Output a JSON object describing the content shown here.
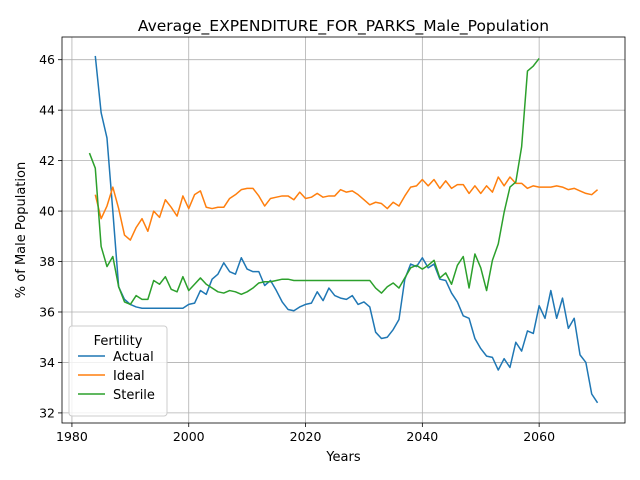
{
  "chart_data": {
    "type": "line",
    "title": "Average_EXPENDITURE_FOR_PARKS_Male_Population",
    "xlabel": "Years",
    "ylabel": "% of Male Population",
    "xlim": [
      1978.3,
      2074.7
    ],
    "ylim": [
      31.6,
      46.9
    ],
    "xticks": [
      1980,
      2000,
      2020,
      2040,
      2060
    ],
    "yticks": [
      32,
      34,
      36,
      38,
      40,
      42,
      44,
      46
    ],
    "grid": true,
    "legend": {
      "title": "Fertility",
      "position": "lower-left"
    },
    "series": [
      {
        "name": "Actual",
        "color": "#1f77b4",
        "x": [
          1984,
          1985,
          1986,
          1987,
          1988,
          1989,
          1990,
          1991,
          1992,
          1993,
          1994,
          1995,
          1996,
          1997,
          1998,
          1999,
          2000,
          2001,
          2002,
          2003,
          2004,
          2005,
          2006,
          2007,
          2008,
          2009,
          2010,
          2011,
          2012,
          2013,
          2014,
          2015,
          2016,
          2017,
          2018,
          2019,
          2020,
          2021,
          2022,
          2023,
          2024,
          2025,
          2026,
          2027,
          2028,
          2029,
          2030,
          2031,
          2032,
          2033,
          2034,
          2035,
          2036,
          2037,
          2038,
          2039,
          2040,
          2041,
          2042,
          2043,
          2044,
          2045,
          2046,
          2047,
          2048,
          2049,
          2050,
          2051,
          2052,
          2053,
          2054,
          2055,
          2056,
          2057,
          2058,
          2059,
          2060,
          2061,
          2062,
          2063,
          2064,
          2065,
          2066,
          2067,
          2068,
          2069,
          2070
        ],
        "values": [
          46.15,
          43.9,
          42.9,
          40.0,
          37.0,
          36.5,
          36.3,
          36.2,
          36.15,
          36.15,
          36.15,
          36.15,
          36.15,
          36.15,
          36.15,
          36.15,
          36.3,
          36.35,
          36.85,
          36.7,
          37.3,
          37.5,
          37.95,
          37.6,
          37.5,
          38.15,
          37.7,
          37.6,
          37.6,
          37.05,
          37.25,
          36.85,
          36.4,
          36.1,
          36.05,
          36.2,
          36.3,
          36.35,
          36.8,
          36.45,
          36.95,
          36.65,
          36.55,
          36.5,
          36.65,
          36.3,
          36.4,
          36.2,
          35.2,
          34.95,
          35.0,
          35.3,
          35.7,
          37.3,
          37.9,
          37.8,
          38.15,
          37.75,
          37.9,
          37.3,
          37.25,
          36.75,
          36.4,
          35.85,
          35.75,
          34.95,
          34.55,
          34.25,
          34.2,
          33.7,
          34.15,
          33.8,
          34.8,
          34.45,
          35.25,
          35.15,
          36.25,
          35.75,
          36.85,
          35.75,
          36.55,
          35.35,
          35.75,
          34.3,
          34.0,
          32.75,
          32.4
        ]
      },
      {
        "name": "Ideal",
        "color": "#ff7f0e",
        "x": [
          1984,
          1985,
          1986,
          1987,
          1988,
          1989,
          1990,
          1991,
          1992,
          1993,
          1994,
          1995,
          1996,
          1997,
          1998,
          1999,
          2000,
          2001,
          2002,
          2003,
          2004,
          2005,
          2006,
          2007,
          2008,
          2009,
          2010,
          2011,
          2012,
          2013,
          2014,
          2015,
          2016,
          2017,
          2018,
          2019,
          2020,
          2021,
          2022,
          2023,
          2024,
          2025,
          2026,
          2027,
          2028,
          2029,
          2030,
          2031,
          2032,
          2033,
          2034,
          2035,
          2036,
          2037,
          2038,
          2039,
          2040,
          2041,
          2042,
          2043,
          2044,
          2045,
          2046,
          2047,
          2048,
          2049,
          2050,
          2051,
          2052,
          2053,
          2054,
          2055,
          2056,
          2057,
          2058,
          2059,
          2060,
          2061,
          2062,
          2063,
          2064,
          2065,
          2066,
          2067,
          2068,
          2069,
          2070
        ],
        "values": [
          40.65,
          39.7,
          40.2,
          40.95,
          40.1,
          39.05,
          38.85,
          39.35,
          39.7,
          39.2,
          40.0,
          39.75,
          40.45,
          40.15,
          39.8,
          40.6,
          40.1,
          40.65,
          40.8,
          40.15,
          40.1,
          40.15,
          40.15,
          40.5,
          40.65,
          40.85,
          40.9,
          40.9,
          40.6,
          40.2,
          40.5,
          40.55,
          40.6,
          40.6,
          40.45,
          40.75,
          40.5,
          40.55,
          40.7,
          40.55,
          40.6,
          40.6,
          40.85,
          40.75,
          40.8,
          40.65,
          40.45,
          40.25,
          40.35,
          40.3,
          40.1,
          40.35,
          40.2,
          40.6,
          40.95,
          41.0,
          41.25,
          41.0,
          41.25,
          40.9,
          41.2,
          40.9,
          41.05,
          41.05,
          40.7,
          41.0,
          40.7,
          41.0,
          40.75,
          41.35,
          41.0,
          41.35,
          41.1,
          41.1,
          40.9,
          41.0,
          40.95,
          40.95,
          40.95,
          41.0,
          40.95,
          40.85,
          40.9,
          40.8,
          40.7,
          40.65,
          40.85
        ]
      },
      {
        "name": "Sterile",
        "color": "#2ca02c",
        "x": [
          1983,
          1984,
          1985,
          1986,
          1987,
          1988,
          1989,
          1990,
          1991,
          1992,
          1993,
          1994,
          1995,
          1996,
          1997,
          1998,
          1999,
          2000,
          2001,
          2002,
          2003,
          2004,
          2005,
          2006,
          2007,
          2008,
          2009,
          2010,
          2011,
          2012,
          2013,
          2014,
          2015,
          2016,
          2017,
          2018,
          2019,
          2020,
          2021,
          2022,
          2023,
          2024,
          2025,
          2026,
          2027,
          2028,
          2029,
          2030,
          2031,
          2032,
          2033,
          2034,
          2035,
          2036,
          2037,
          2038,
          2039,
          2040,
          2041,
          2042,
          2043,
          2044,
          2045,
          2046,
          2047,
          2048,
          2049,
          2050,
          2051,
          2052,
          2053,
          2054,
          2055,
          2056,
          2057,
          2058,
          2059,
          2060
        ],
        "values": [
          42.3,
          41.7,
          38.6,
          37.8,
          38.2,
          37.0,
          36.4,
          36.3,
          36.65,
          36.5,
          36.5,
          37.25,
          37.1,
          37.4,
          36.9,
          36.8,
          37.4,
          36.85,
          37.1,
          37.35,
          37.1,
          36.95,
          36.8,
          36.75,
          36.85,
          36.8,
          36.7,
          36.8,
          36.95,
          37.15,
          37.2,
          37.2,
          37.25,
          37.3,
          37.3,
          37.25,
          37.25,
          37.25,
          37.25,
          37.25,
          37.25,
          37.25,
          37.25,
          37.25,
          37.25,
          37.25,
          37.25,
          37.25,
          37.25,
          36.95,
          36.75,
          37.0,
          37.15,
          36.95,
          37.35,
          37.75,
          37.85,
          37.7,
          37.85,
          38.05,
          37.35,
          37.55,
          37.1,
          37.85,
          38.2,
          36.95,
          38.3,
          37.75,
          36.85,
          38.05,
          38.7,
          39.95,
          40.95,
          41.15,
          42.55,
          45.55,
          45.75,
          46.05
        ]
      }
    ]
  }
}
